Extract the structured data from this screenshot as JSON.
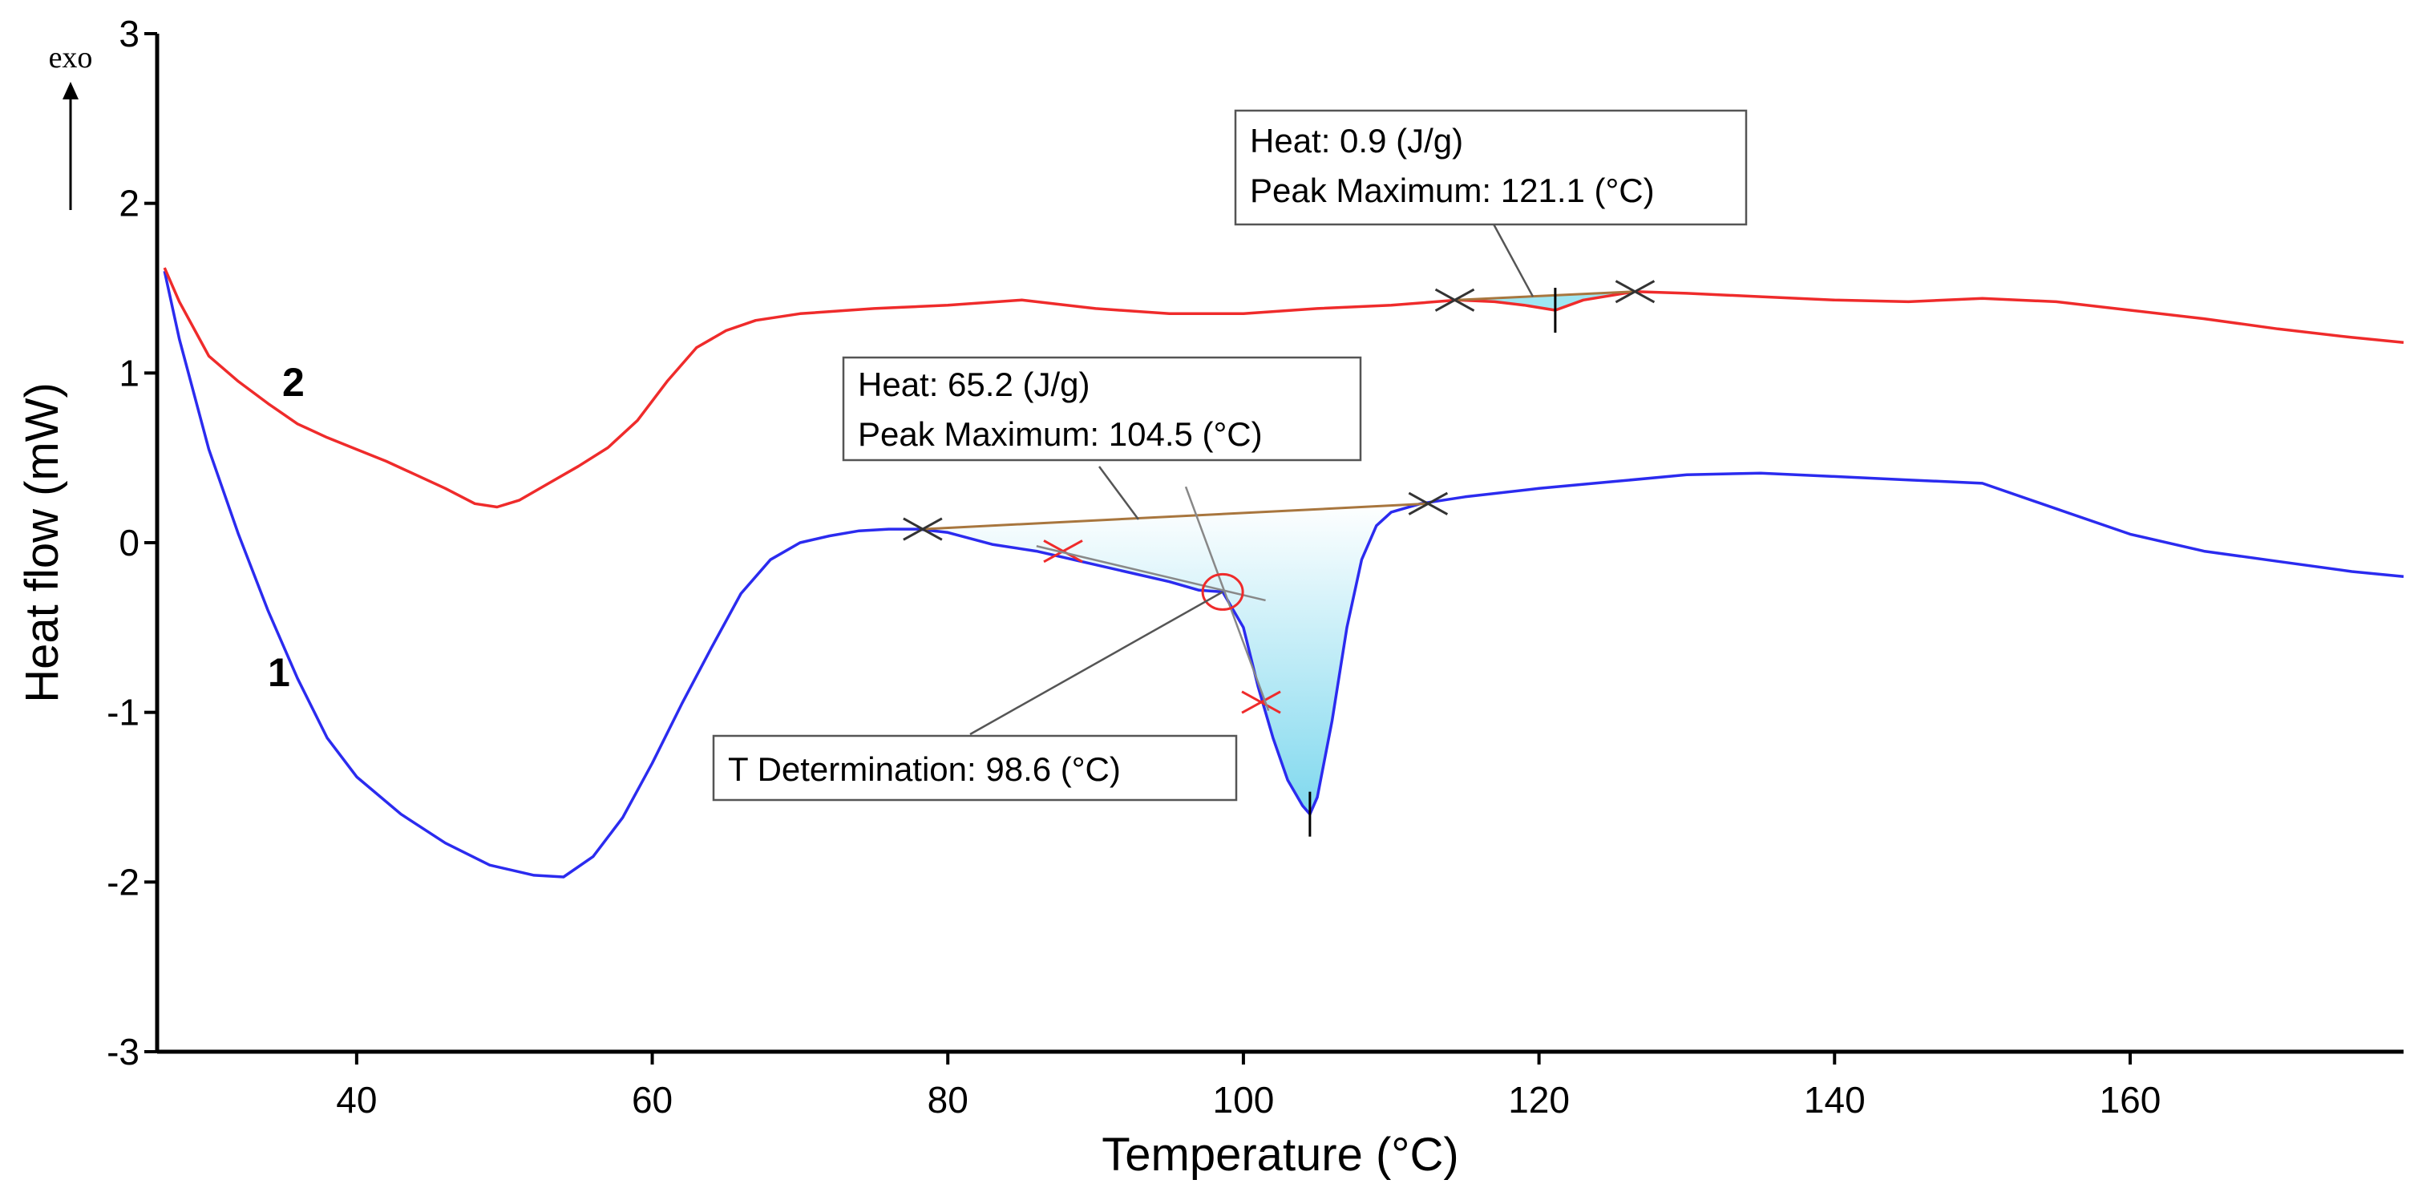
{
  "chart_data": {
    "type": "line",
    "title": "",
    "xlabel": "Temperature (°C)",
    "ylabel": "Heat flow (mW)",
    "xlim": [
      26.5,
      178.5
    ],
    "ylim": [
      -3,
      3
    ],
    "x_ticks": [
      40,
      60,
      80,
      100,
      120,
      140,
      160
    ],
    "y_ticks": [
      3,
      2,
      1,
      0,
      -1,
      -2,
      -3
    ],
    "x_tick_labels": [
      "40",
      "60",
      "80",
      "100",
      "120",
      "140",
      "160"
    ],
    "y_tick_labels": [
      "3",
      "2",
      "1",
      "0",
      "-1",
      "-2",
      "-3"
    ],
    "direction_label": "exo",
    "series": [
      {
        "name": "1",
        "color": "#2b2bef",
        "points": [
          [
            27,
            1.6
          ],
          [
            28,
            1.2
          ],
          [
            30,
            0.55
          ],
          [
            32,
            0.05
          ],
          [
            34,
            -0.4
          ],
          [
            36,
            -0.8
          ],
          [
            38,
            -1.15
          ],
          [
            40,
            -1.38
          ],
          [
            43,
            -1.6
          ],
          [
            46,
            -1.77
          ],
          [
            49,
            -1.9
          ],
          [
            52,
            -1.96
          ],
          [
            54,
            -1.97
          ],
          [
            56,
            -1.85
          ],
          [
            58,
            -1.62
          ],
          [
            60,
            -1.3
          ],
          [
            62,
            -0.95
          ],
          [
            64,
            -0.62
          ],
          [
            66,
            -0.3
          ],
          [
            68,
            -0.1
          ],
          [
            70,
            0.0
          ],
          [
            72,
            0.04
          ],
          [
            74,
            0.07
          ],
          [
            76,
            0.08
          ],
          [
            78,
            0.08
          ],
          [
            80,
            0.06
          ],
          [
            83,
            -0.01
          ],
          [
            86,
            -0.05
          ],
          [
            89,
            -0.11
          ],
          [
            92,
            -0.17
          ],
          [
            95,
            -0.23
          ],
          [
            97,
            -0.28
          ],
          [
            98.6,
            -0.29
          ],
          [
            100,
            -0.5
          ],
          [
            101,
            -0.85
          ],
          [
            102,
            -1.15
          ],
          [
            103,
            -1.4
          ],
          [
            104,
            -1.55
          ],
          [
            104.5,
            -1.6
          ],
          [
            105,
            -1.5
          ],
          [
            106,
            -1.05
          ],
          [
            107,
            -0.5
          ],
          [
            108,
            -0.1
          ],
          [
            109,
            0.1
          ],
          [
            110,
            0.18
          ],
          [
            112,
            0.23
          ],
          [
            115,
            0.27
          ],
          [
            120,
            0.32
          ],
          [
            125,
            0.36
          ],
          [
            130,
            0.4
          ],
          [
            135,
            0.41
          ],
          [
            140,
            0.39
          ],
          [
            145,
            0.37
          ],
          [
            150,
            0.35
          ],
          [
            155,
            0.2
          ],
          [
            160,
            0.05
          ],
          [
            165,
            -0.05
          ],
          [
            170,
            -0.11
          ],
          [
            175,
            -0.17
          ],
          [
            178.5,
            -0.2
          ]
        ]
      },
      {
        "name": "2",
        "color": "#ef2b2b",
        "points": [
          [
            27,
            1.62
          ],
          [
            28,
            1.42
          ],
          [
            30,
            1.1
          ],
          [
            32,
            0.95
          ],
          [
            34,
            0.82
          ],
          [
            36,
            0.7
          ],
          [
            38,
            0.62
          ],
          [
            40,
            0.55
          ],
          [
            42,
            0.48
          ],
          [
            44,
            0.4
          ],
          [
            46,
            0.32
          ],
          [
            48,
            0.23
          ],
          [
            49.5,
            0.21
          ],
          [
            51,
            0.25
          ],
          [
            53,
            0.35
          ],
          [
            55,
            0.45
          ],
          [
            57,
            0.56
          ],
          [
            59,
            0.72
          ],
          [
            61,
            0.95
          ],
          [
            63,
            1.15
          ],
          [
            65,
            1.25
          ],
          [
            67,
            1.31
          ],
          [
            70,
            1.35
          ],
          [
            75,
            1.38
          ],
          [
            80,
            1.4
          ],
          [
            85,
            1.43
          ],
          [
            90,
            1.38
          ],
          [
            95,
            1.35
          ],
          [
            100,
            1.35
          ],
          [
            105,
            1.38
          ],
          [
            110,
            1.4
          ],
          [
            114.5,
            1.43
          ],
          [
            117,
            1.42
          ],
          [
            119,
            1.4
          ],
          [
            121.1,
            1.37
          ],
          [
            123,
            1.43
          ],
          [
            126.5,
            1.48
          ],
          [
            130,
            1.47
          ],
          [
            135,
            1.45
          ],
          [
            140,
            1.43
          ],
          [
            145,
            1.42
          ],
          [
            150,
            1.44
          ],
          [
            155,
            1.42
          ],
          [
            160,
            1.37
          ],
          [
            165,
            1.32
          ],
          [
            170,
            1.26
          ],
          [
            175,
            1.21
          ],
          [
            178.5,
            1.18
          ]
        ]
      }
    ],
    "annotations": [
      {
        "lines": [
          "Heat: 0.9 (J/g)",
          "Peak Maximum: 121.1 (°C)"
        ],
        "series": "2",
        "peak": [
          121.1,
          1.37
        ]
      },
      {
        "lines": [
          "Heat: 65.2 (J/g)",
          "Peak Maximum: 104.5 (°C)"
        ],
        "series": "1",
        "peak": [
          104.5,
          -1.6
        ]
      },
      {
        "lines": [
          "T Determination: 98.6 (°C)"
        ],
        "series": "1",
        "point": [
          98.6,
          -0.29
        ]
      }
    ],
    "peak_baselines": [
      {
        "series": "1",
        "start": [
          78.3,
          0.08
        ],
        "end": [
          112.5,
          0.23
        ]
      },
      {
        "series": "2",
        "start": [
          114.3,
          1.43
        ],
        "end": [
          126.5,
          1.48
        ]
      }
    ],
    "tangent_markers": [
      [
        87.8,
        -0.05
      ],
      [
        101.2,
        -0.94
      ]
    ],
    "fill_color": "#9ee6f2"
  }
}
